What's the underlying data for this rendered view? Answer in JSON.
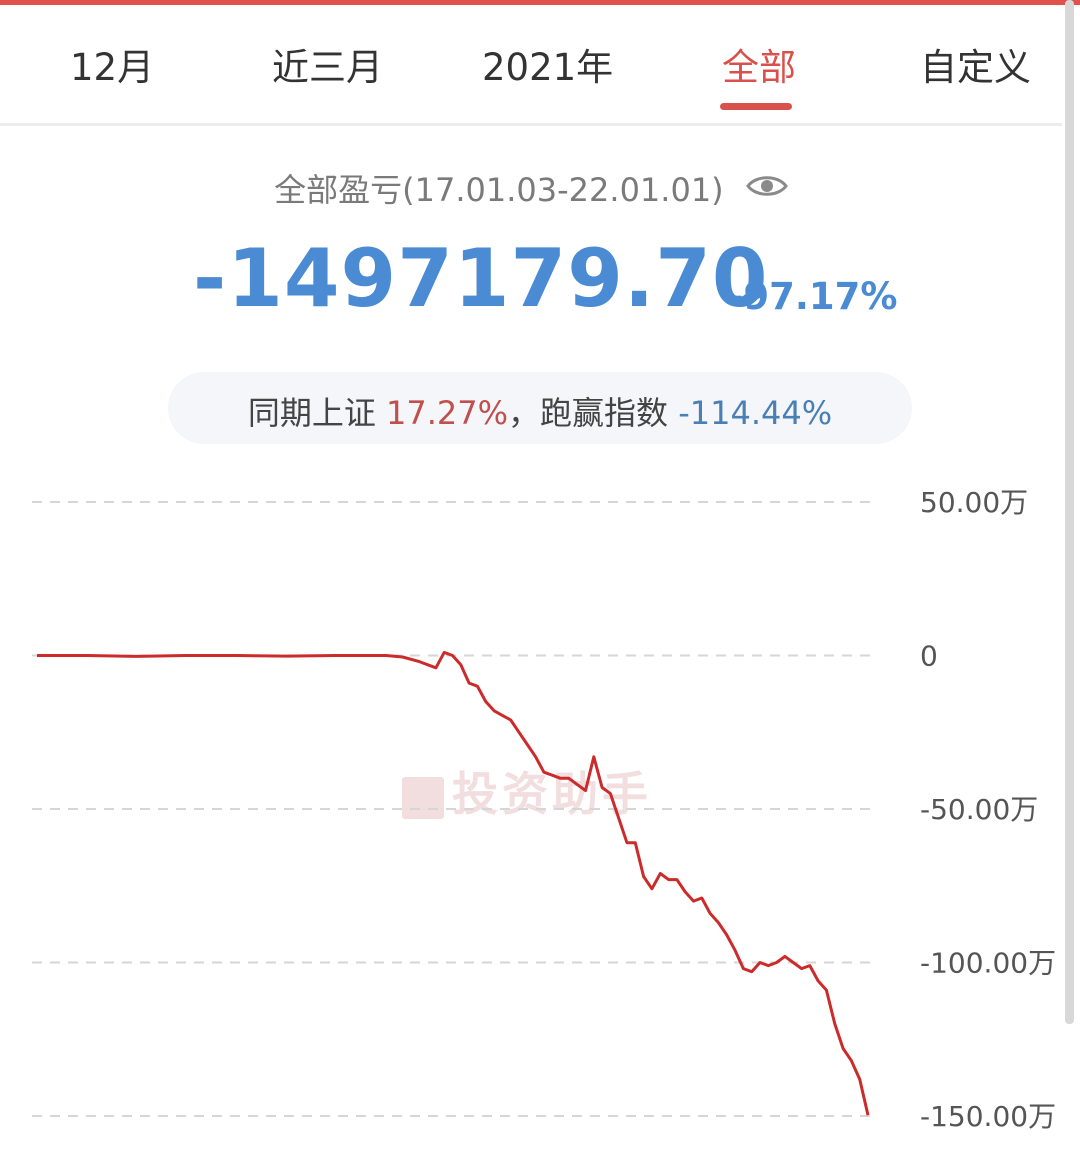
{
  "tabs": [
    {
      "label": "12月",
      "active": false
    },
    {
      "label": "近三月",
      "active": false
    },
    {
      "label": "2021年",
      "active": false
    },
    {
      "label": "全部",
      "active": true
    },
    {
      "label": "自定义",
      "active": false
    }
  ],
  "summary": {
    "label": "全部盈亏(17.01.03-22.01.01)",
    "icon": "eye-icon",
    "value": "-1497179.70",
    "percent": "-97.17%"
  },
  "compare": {
    "prefix": "同期上证 ",
    "shanghai": "17.27%",
    "middle": "，跑赢指数 ",
    "beat": "-114.44%"
  },
  "watermark": "投资助手",
  "colors": {
    "accent": "#d9514c",
    "value_blue": "#4a8bd4",
    "line": "#cc2b2b"
  },
  "chart_data": {
    "type": "line",
    "title": "",
    "xlabel": "",
    "ylabel": "",
    "ylim": [
      -1500000,
      500000
    ],
    "yticks": [
      {
        "value": 500000,
        "label": "50.00万"
      },
      {
        "value": 0,
        "label": "0"
      },
      {
        "value": -500000,
        "label": "-50.00万"
      },
      {
        "value": -1000000,
        "label": "-100.00万"
      },
      {
        "value": -1500000,
        "label": "-150.00万"
      }
    ],
    "grid": true,
    "series": [
      {
        "x": [
          0,
          0.06,
          0.12,
          0.18,
          0.24,
          0.3,
          0.36,
          0.42,
          0.44,
          0.46,
          0.48,
          0.49,
          0.5,
          0.51,
          0.52,
          0.53,
          0.54,
          0.55,
          0.56,
          0.57,
          0.58,
          0.59,
          0.6,
          0.61,
          0.62,
          0.63,
          0.64,
          0.65,
          0.66,
          0.67,
          0.68,
          0.69,
          0.7,
          0.71,
          0.72,
          0.73,
          0.74,
          0.75,
          0.76,
          0.77,
          0.78,
          0.79,
          0.8,
          0.81,
          0.82,
          0.83,
          0.84,
          0.85,
          0.86,
          0.87,
          0.88,
          0.89,
          0.9,
          0.91,
          0.92,
          0.93,
          0.94,
          0.95,
          0.96,
          0.97,
          0.98,
          0.99,
          1.0
        ],
        "values": [
          0,
          0,
          -3000,
          0,
          0,
          -2000,
          0,
          0,
          -5000,
          -20000,
          -40000,
          10000,
          0,
          -30000,
          -90000,
          -100000,
          -150000,
          -180000,
          -195000,
          -210000,
          -250000,
          -290000,
          -330000,
          -380000,
          -390000,
          -400000,
          -400000,
          -420000,
          -440000,
          -330000,
          -430000,
          -450000,
          -530000,
          -610000,
          -610000,
          -720000,
          -760000,
          -710000,
          -730000,
          -730000,
          -770000,
          -800000,
          -790000,
          -840000,
          -870000,
          -910000,
          -960000,
          -1020000,
          -1030000,
          -1000000,
          -1010000,
          -1000000,
          -980000,
          -1000000,
          -1020000,
          -1010000,
          -1060000,
          -1090000,
          -1200000,
          -1280000,
          -1320000,
          -1380000,
          -1497000
        ]
      }
    ]
  }
}
